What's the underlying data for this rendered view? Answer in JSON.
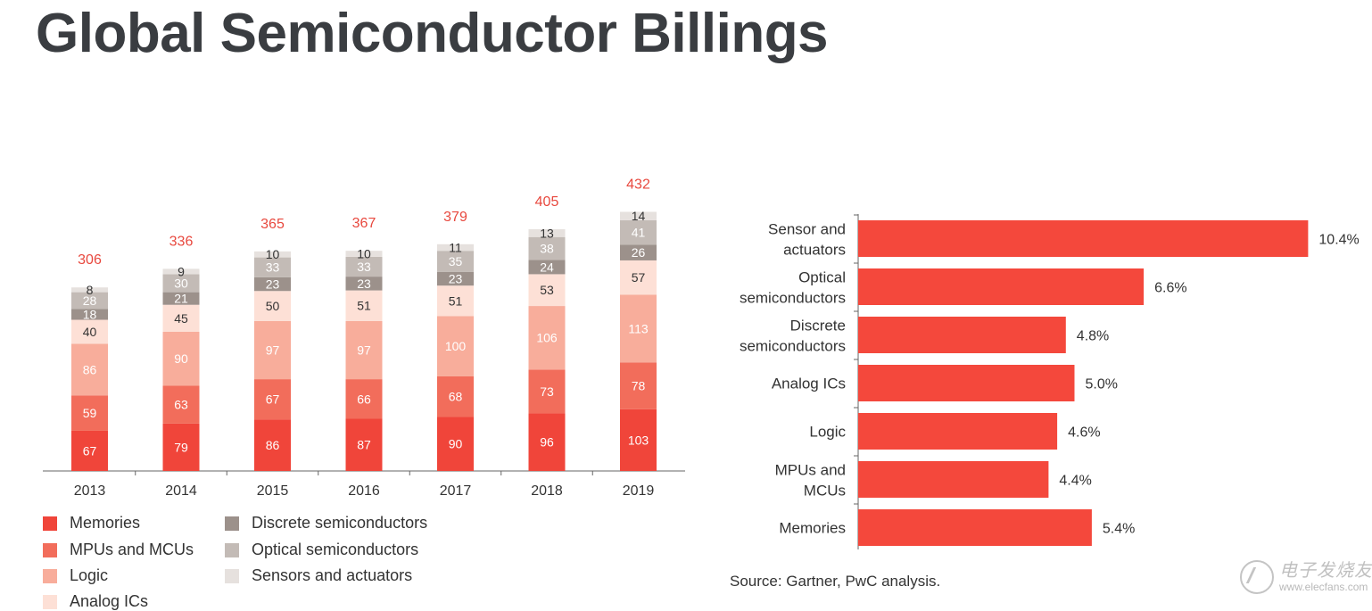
{
  "header": {
    "title": "Global Semiconductor Billings"
  },
  "chart_data": [
    {
      "type": "bar",
      "stacked": true,
      "title": "",
      "categories": [
        "2013",
        "2014",
        "2015",
        "2016",
        "2017",
        "2018",
        "2019"
      ],
      "series": [
        {
          "name": "Memories",
          "color": "#f0453a",
          "values": [
            67,
            79,
            86,
            87,
            90,
            96,
            103
          ]
        },
        {
          "name": "MPUs and MCUs",
          "color": "#f26d5b",
          "values": [
            59,
            63,
            67,
            66,
            68,
            73,
            78
          ]
        },
        {
          "name": "Logic",
          "color": "#f8ad9b",
          "values": [
            86,
            90,
            97,
            97,
            100,
            106,
            113
          ]
        },
        {
          "name": "Analog ICs",
          "color": "#fde0d6",
          "values": [
            40,
            45,
            50,
            51,
            51,
            53,
            57
          ]
        },
        {
          "name": "Discrete semiconductors",
          "color": "#9c918b",
          "values": [
            18,
            21,
            23,
            23,
            23,
            24,
            26
          ]
        },
        {
          "name": "Optical semiconductors",
          "color": "#c3bbb6",
          "values": [
            28,
            30,
            33,
            33,
            35,
            38,
            41
          ]
        },
        {
          "name": "Sensors and actuators",
          "color": "#e6e1de",
          "values": [
            8,
            9,
            10,
            10,
            11,
            13,
            14
          ]
        }
      ],
      "totals": [
        306,
        336,
        365,
        367,
        379,
        405,
        432
      ],
      "ylim": [
        0,
        450
      ],
      "grid": false,
      "legend": "bottom"
    },
    {
      "type": "bar",
      "orientation": "horizontal",
      "title": "",
      "categories": [
        [
          "Sensor and",
          "actuators"
        ],
        [
          "Optical",
          "semiconductors"
        ],
        [
          "Discrete",
          "semiconductors"
        ],
        [
          "Analog ICs"
        ],
        [
          "Logic"
        ],
        [
          "MPUs and",
          "MCUs"
        ],
        [
          "Memories"
        ]
      ],
      "values": [
        10.4,
        6.6,
        4.8,
        5.0,
        4.6,
        4.4,
        5.4
      ],
      "value_labels": [
        "10.4%",
        "6.6%",
        "4.8%",
        "5.0%",
        "4.6%",
        "4.4%",
        "5.4%"
      ],
      "xlim": [
        0,
        11
      ],
      "color": "#f4483c",
      "grid": false
    }
  ],
  "source": "Source: Gartner, PwC analysis.",
  "watermark": {
    "cn": "电子发烧友",
    "url": "www.elecfans.com"
  }
}
